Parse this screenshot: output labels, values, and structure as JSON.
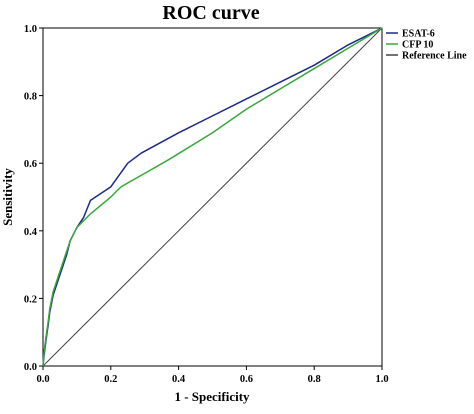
{
  "chart_data": {
    "type": "line",
    "title": "ROC curve",
    "xlabel": "1 - Specificity",
    "ylabel": "Sensitivity",
    "xlim": [
      0,
      1
    ],
    "ylim": [
      0,
      1
    ],
    "x_ticks": [
      "0.0",
      "0.2",
      "0.4",
      "0.6",
      "0.8",
      "1.0"
    ],
    "y_ticks": [
      "0.0",
      "0.2",
      "0.4",
      "0.6",
      "0.8",
      "1.0"
    ],
    "grid": false,
    "legend_position": "right",
    "series": [
      {
        "name": "ESAT-6",
        "color": "#1a2a8a",
        "x": [
          0,
          0.003,
          0.008,
          0.015,
          0.02,
          0.03,
          0.04,
          0.05,
          0.06,
          0.07,
          0.08,
          0.1,
          0.12,
          0.14,
          0.2,
          0.25,
          0.29,
          0.4,
          0.5,
          0.6,
          0.7,
          0.8,
          0.9,
          1.0
        ],
        "y": [
          0,
          0.03,
          0.07,
          0.12,
          0.16,
          0.21,
          0.24,
          0.27,
          0.3,
          0.33,
          0.37,
          0.41,
          0.44,
          0.49,
          0.53,
          0.6,
          0.63,
          0.69,
          0.74,
          0.79,
          0.84,
          0.89,
          0.95,
          1.0
        ]
      },
      {
        "name": "CFP 10",
        "color": "#3aa83a",
        "x": [
          0,
          0.003,
          0.008,
          0.015,
          0.02,
          0.03,
          0.04,
          0.05,
          0.06,
          0.07,
          0.08,
          0.1,
          0.12,
          0.14,
          0.2,
          0.23,
          0.3,
          0.37,
          0.5,
          0.6,
          0.7,
          0.8,
          0.9,
          1.0
        ],
        "y": [
          0,
          0.04,
          0.08,
          0.13,
          0.17,
          0.22,
          0.25,
          0.28,
          0.31,
          0.34,
          0.37,
          0.41,
          0.43,
          0.45,
          0.5,
          0.53,
          0.57,
          0.61,
          0.69,
          0.76,
          0.82,
          0.88,
          0.94,
          1.0
        ]
      },
      {
        "name": "Reference Line",
        "color": "#444444",
        "x": [
          0,
          1
        ],
        "y": [
          0,
          1
        ]
      }
    ]
  }
}
